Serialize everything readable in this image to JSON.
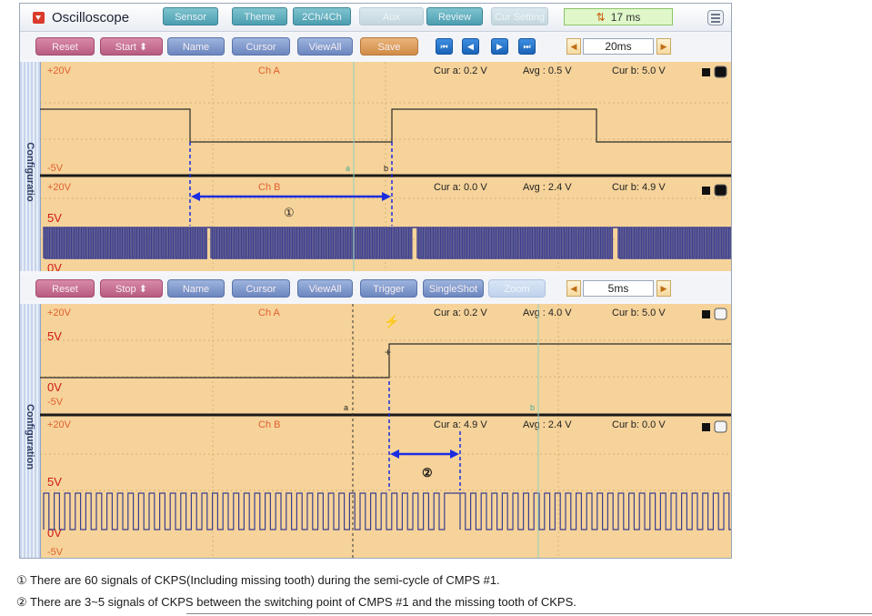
{
  "window": {
    "title": "Oscilloscope",
    "sample_rate": "17 ms"
  },
  "top_tabs": [
    "Sensor",
    "Theme",
    "2Ch/4Ch",
    "Aux",
    "Review",
    "Cur Setting"
  ],
  "panel1": {
    "toolbar": {
      "reset": "Reset",
      "start": "Start",
      "name": "Name",
      "cursor": "Cursor",
      "view_all": "ViewAll",
      "save": "Save",
      "time_div": "20ms"
    },
    "sidebar_label": "Configuratio",
    "ch_a": {
      "name": "Ch A",
      "top": "+20V",
      "bottom": "-5V",
      "cur_a": "Cur a: 0.2 V",
      "avg": "Avg : 0.5 V",
      "cur_b": "Cur b: 5.0 V"
    },
    "ch_b": {
      "name": "Ch B",
      "top": "+20V",
      "mid": "5V",
      "bottom": "0V",
      "cur_a": "Cur a: 0.0 V",
      "avg": "Avg : 2.4 V",
      "cur_b": "Cur b: 4.9 V"
    },
    "cursor_a": "a",
    "cursor_b": "b",
    "marker": "①"
  },
  "panel2": {
    "toolbar": {
      "reset": "Reset",
      "stop": "Stop",
      "name": "Name",
      "cursor": "Cursor",
      "view_all": "ViewAll",
      "trigger": "Trigger",
      "single_shot": "SingleShot",
      "zoom": "Zoom",
      "time_div": "5ms"
    },
    "sidebar_label": "Configuration",
    "ch_a": {
      "name": "Ch A",
      "top": "+20V",
      "mid": "5V",
      "zero": "0V",
      "bottom": "-5V",
      "cur_a": "Cur a: 0.2 V",
      "avg": "Avg : 4.0 V",
      "cur_b": "Cur b: 5.0 V"
    },
    "ch_b": {
      "name": "Ch B",
      "top": "+20V",
      "mid": "5V",
      "zero": "0V",
      "bottom": "-5V",
      "cur_a": "Cur a: 4.9 V",
      "avg": "Avg : 2.4 V",
      "cur_b": "Cur b: 0.0 V"
    },
    "cursor_a": "a",
    "cursor_b": "b",
    "marker": "②"
  },
  "notes": [
    "① There are 60 signals of CKPS(Including missing tooth) during the semi-cycle of CMPS #1.",
    "② There are 3~5 signals of CKPS between the switching point of CMPS #1 and the missing tooth of CKPS."
  ],
  "colors": {
    "plot_bg": "#f6d39a",
    "trace": "#3b3f8f",
    "ch_a_trace": "#2b2b2b",
    "marker": "#1a2de0",
    "label_red": "#d01818"
  }
}
